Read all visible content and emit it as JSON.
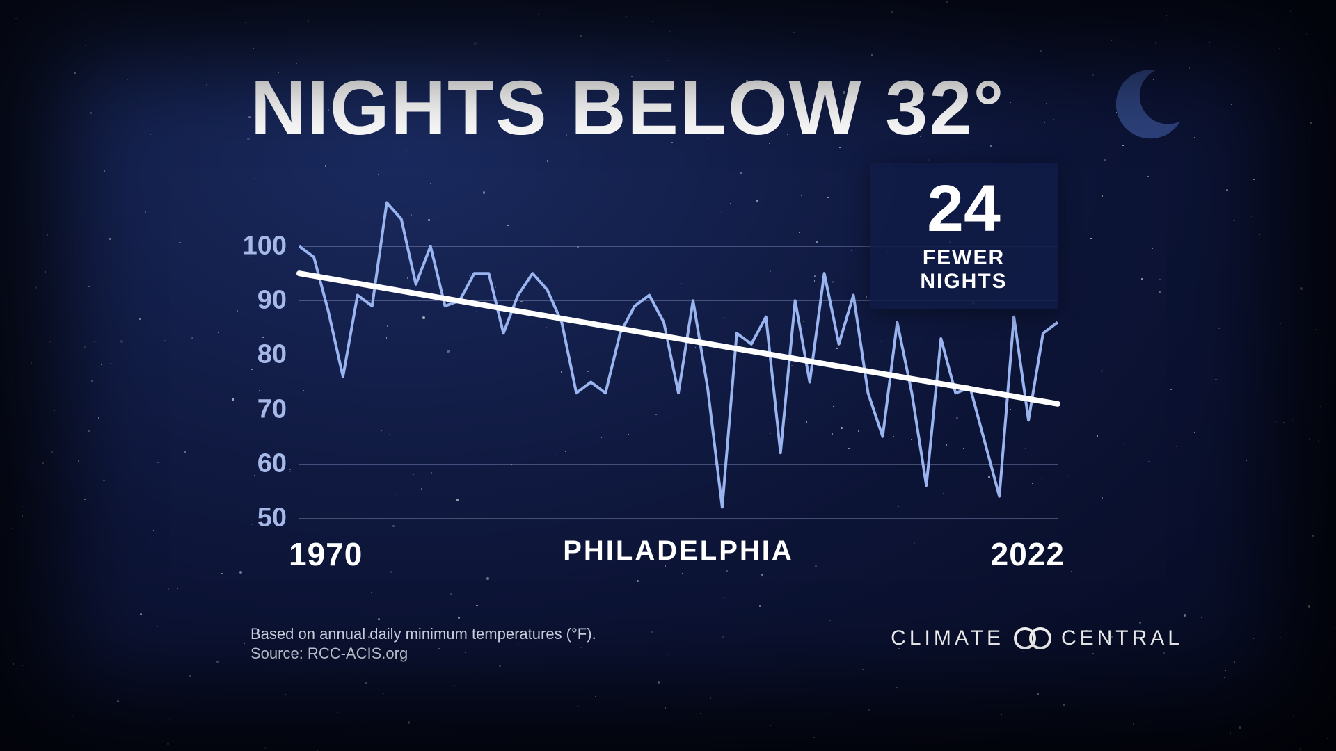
{
  "title": "NIGHTS BELOW 32°",
  "chart": {
    "type": "line",
    "x_start": 1970,
    "x_end": 2022,
    "x_center_label": "PHILADELPHIA",
    "ylim": [
      50,
      105
    ],
    "yticks": [
      50,
      60,
      70,
      80,
      90,
      100
    ],
    "line_color": "#9ab4ef",
    "line_width": 4,
    "trend_color": "#ffffff",
    "trend_width": 8,
    "trend_start_y": 95,
    "trend_end_y": 71,
    "grid_color": "rgba(165,184,232,0.35)",
    "axis_label_color": "#a5b8e8",
    "axis_fontsize": 38,
    "xlabel_fontsize": 46,
    "values": [
      100,
      98,
      88,
      76,
      91,
      89,
      108,
      105,
      93,
      100,
      89,
      90,
      95,
      95,
      84,
      91,
      95,
      92,
      86,
      73,
      75,
      73,
      84,
      89,
      91,
      86,
      73,
      90,
      74,
      52,
      84,
      82,
      87,
      62,
      90,
      75,
      95,
      82,
      91,
      73,
      65,
      86,
      73,
      56,
      83,
      73,
      74,
      64,
      54,
      87,
      68,
      84,
      86
    ]
  },
  "callout": {
    "number": "24",
    "label": "FEWER NIGHTS",
    "bg_color": "rgba(16,28,70,0.85)",
    "num_fontsize": 95,
    "sub_fontsize": 30
  },
  "footnote_line1": "Based on annual daily minimum temperatures (°F).",
  "footnote_line2": "Source: RCC-ACIS.org",
  "brand_left": "CLIMATE",
  "brand_right": "CENTRAL",
  "colors": {
    "bg_inner": "#1a2a5e",
    "bg_mid": "#0d1538",
    "bg_outer": "#060a20",
    "text": "#ffffff",
    "moon": "#2a3d7a"
  },
  "title_fontsize": 110,
  "moon_size": 110
}
